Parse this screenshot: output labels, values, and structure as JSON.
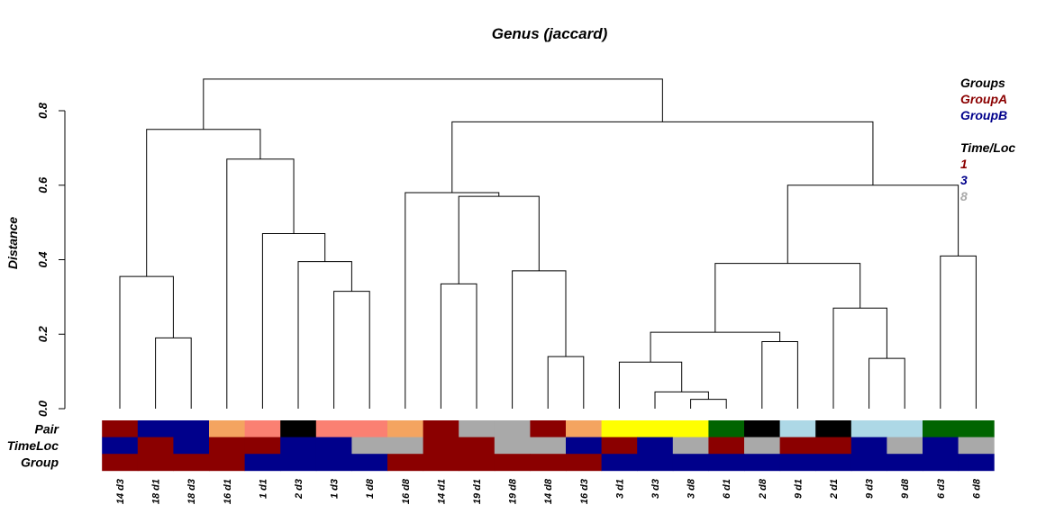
{
  "chart_data": {
    "type": "dendrogram",
    "title": "Genus (jaccard)",
    "ylabel": "Distance",
    "ylim": [
      0,
      0.9
    ],
    "yticks": [
      "0.0",
      "0.2",
      "0.4",
      "0.6",
      "0.8"
    ],
    "ytick_values": [
      0,
      0.2,
      0.4,
      0.6,
      0.8
    ],
    "leaves": [
      "14 d3",
      "18 d1",
      "18 d3",
      "16 d1",
      "1 d1",
      "2 d3",
      "1 d3",
      "1 d8",
      "16 d8",
      "14 d1",
      "19 d1",
      "19 d8",
      "14 d8",
      "16 d3",
      "3 d1",
      "3 d3",
      "3 d8",
      "6 d1",
      "2 d8",
      "9 d1",
      "2 d1",
      "9 d3",
      "9 d8",
      "6 d3",
      "6 d8"
    ],
    "merges": [
      {
        "a": -17,
        "b": -18,
        "h": 0.025
      },
      {
        "a": -16,
        "b": 1,
        "h": 0.045
      },
      {
        "a": -15,
        "b": 2,
        "h": 0.125
      },
      {
        "a": -22,
        "b": -23,
        "h": 0.135
      },
      {
        "a": -13,
        "b": -14,
        "h": 0.14
      },
      {
        "a": -19,
        "b": -20,
        "h": 0.18
      },
      {
        "a": -2,
        "b": -3,
        "h": 0.19
      },
      {
        "a": 3,
        "b": 6,
        "h": 0.205
      },
      {
        "a": -21,
        "b": 4,
        "h": 0.27
      },
      {
        "a": -7,
        "b": -8,
        "h": 0.315
      },
      {
        "a": -10,
        "b": -11,
        "h": 0.335
      },
      {
        "a": -1,
        "b": 7,
        "h": 0.355
      },
      {
        "a": -12,
        "b": 5,
        "h": 0.37
      },
      {
        "a": 8,
        "b": 9,
        "h": 0.39
      },
      {
        "a": -6,
        "b": 10,
        "h": 0.395
      },
      {
        "a": -24,
        "b": -25,
        "h": 0.41
      },
      {
        "a": -5,
        "b": 15,
        "h": 0.47
      },
      {
        "a": 11,
        "b": 13,
        "h": 0.57
      },
      {
        "a": -9,
        "b": 18,
        "h": 0.58
      },
      {
        "a": 14,
        "b": 16,
        "h": 0.6
      },
      {
        "a": -4,
        "b": 17,
        "h": 0.67
      },
      {
        "a": 12,
        "b": 21,
        "h": 0.75
      },
      {
        "a": 19,
        "b": 20,
        "h": 0.77
      },
      {
        "a": 22,
        "b": 23,
        "h": 0.885
      }
    ],
    "color_bars": [
      {
        "label": "Pair",
        "colors": [
          "#8b0000",
          "#00008b",
          "#00008b",
          "#f4a460",
          "#fa8072",
          "#000000",
          "#fa8072",
          "#fa8072",
          "#f4a460",
          "#8b0000",
          "#a9a9a9",
          "#a9a9a9",
          "#8b0000",
          "#f4a460",
          "#ffff00",
          "#ffff00",
          "#ffff00",
          "#006400",
          "#000000",
          "#add8e6",
          "#000000",
          "#add8e6",
          "#add8e6",
          "#006400",
          "#006400"
        ]
      },
      {
        "label": "TimeLoc",
        "colors": [
          "#00008b",
          "#8b0000",
          "#00008b",
          "#8b0000",
          "#8b0000",
          "#00008b",
          "#00008b",
          "#a9a9a9",
          "#a9a9a9",
          "#8b0000",
          "#8b0000",
          "#a9a9a9",
          "#a9a9a9",
          "#00008b",
          "#8b0000",
          "#00008b",
          "#a9a9a9",
          "#8b0000",
          "#a9a9a9",
          "#8b0000",
          "#8b0000",
          "#00008b",
          "#a9a9a9",
          "#00008b",
          "#a9a9a9"
        ]
      },
      {
        "label": "Group",
        "colors": [
          "#8b0000",
          "#8b0000",
          "#8b0000",
          "#8b0000",
          "#00008b",
          "#00008b",
          "#00008b",
          "#00008b",
          "#8b0000",
          "#8b0000",
          "#8b0000",
          "#8b0000",
          "#8b0000",
          "#8b0000",
          "#00008b",
          "#00008b",
          "#00008b",
          "#00008b",
          "#00008b",
          "#00008b",
          "#00008b",
          "#00008b",
          "#00008b",
          "#00008b",
          "#00008b"
        ]
      }
    ],
    "legend": [
      {
        "title": "Groups",
        "items": [
          {
            "label": "GroupA",
            "color": "#8b0000"
          },
          {
            "label": "GroupB",
            "color": "#00008b"
          }
        ]
      },
      {
        "title": "Time/Loc",
        "items": [
          {
            "label": "1",
            "color": "#8b0000"
          },
          {
            "label": "3",
            "color": "#00008b"
          },
          {
            "label": "8",
            "color": "#a9a9a9"
          }
        ]
      }
    ],
    "legend_position": "top-right"
  }
}
